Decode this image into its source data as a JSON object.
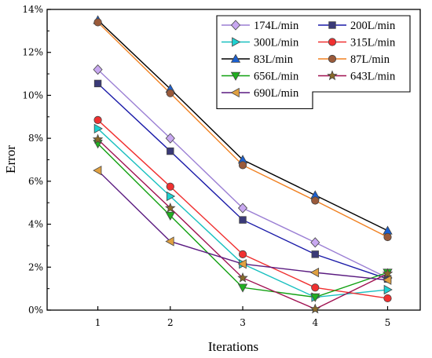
{
  "chart_data": {
    "type": "line",
    "xlabel": "Iterations",
    "ylabel": "Error",
    "x": [
      1,
      2,
      3,
      4,
      5
    ],
    "x_ticks": [
      "1",
      "2",
      "3",
      "4",
      "5"
    ],
    "xlim": [
      0.3,
      5.45
    ],
    "ylim": [
      0,
      14
    ],
    "y_ticks": [
      "0%",
      "2%",
      "4%",
      "6%",
      "8%",
      "10%",
      "12%",
      "14%"
    ],
    "grid": false,
    "legend_position": "top-right",
    "series": [
      {
        "name": "174L/min",
        "values": [
          11.2,
          8.0,
          4.75,
          3.15,
          1.5
        ],
        "color": "#9b7fd4",
        "fill": "#c8a8f0",
        "marker": "diamond"
      },
      {
        "name": "200L/min",
        "values": [
          10.55,
          7.4,
          4.2,
          2.6,
          1.45
        ],
        "color": "#1a1aa8",
        "fill": "#3a3a78",
        "marker": "square"
      },
      {
        "name": "300L/min",
        "values": [
          8.45,
          5.3,
          2.15,
          0.6,
          0.95
        ],
        "color": "#18c0c0",
        "fill": "#1ed0d0",
        "marker": "triangle-right"
      },
      {
        "name": "315L/min",
        "values": [
          8.85,
          5.75,
          2.6,
          1.05,
          0.55
        ],
        "color": "#f03030",
        "fill": "#f03030",
        "marker": "circle"
      },
      {
        "name": "83L/min",
        "values": [
          13.5,
          10.3,
          7.0,
          5.35,
          3.7
        ],
        "color": "#000000",
        "fill": "#1a5fd0",
        "marker": "triangle-up"
      },
      {
        "name": "87L/min",
        "values": [
          13.4,
          10.1,
          6.75,
          5.1,
          3.4
        ],
        "color": "#f08020",
        "fill": "#9a5a3a",
        "marker": "circle"
      },
      {
        "name": "656L/min",
        "values": [
          7.75,
          4.4,
          1.05,
          0.6,
          1.75
        ],
        "color": "#10a010",
        "fill": "#20b020",
        "marker": "triangle-down"
      },
      {
        "name": "643L/min",
        "values": [
          7.95,
          4.75,
          1.5,
          0.05,
          1.7
        ],
        "color": "#a01050",
        "fill": "#8a6a2a",
        "marker": "star"
      },
      {
        "name": "690L/min",
        "values": [
          6.5,
          3.2,
          2.15,
          1.75,
          1.4
        ],
        "color": "#5a1a80",
        "fill": "#e0a040",
        "marker": "triangle-left"
      }
    ]
  }
}
